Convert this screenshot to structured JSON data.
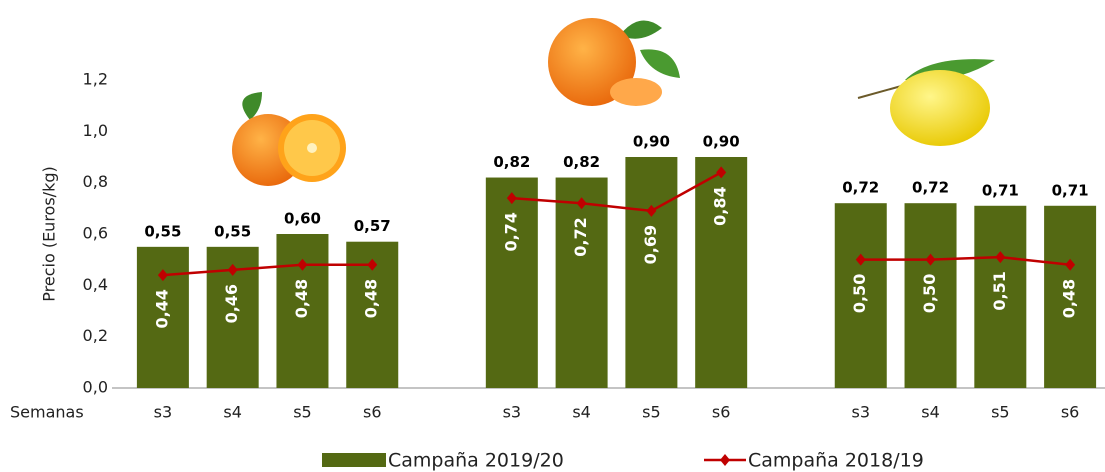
{
  "chart_data": {
    "type": "bar_line",
    "y_label": "Precio (Euros/kg)",
    "x_label": "Semanas",
    "categories": [
      "s3",
      "s4",
      "s5",
      "s6",
      null,
      "s3",
      "s4",
      "s5",
      "s6",
      null,
      "s3",
      "s4",
      "s5",
      "s6"
    ],
    "ylim": [
      0,
      1.2
    ],
    "yticks": [
      {
        "value": 0,
        "label": "0,0"
      },
      {
        "value": 0.2,
        "label": "0,2"
      },
      {
        "value": 0.4,
        "label": "0,4"
      },
      {
        "value": 0.6,
        "label": "0,6"
      },
      {
        "value": 0.8,
        "label": "0,8"
      },
      {
        "value": 1.0,
        "label": "1,0"
      },
      {
        "value": 1.2,
        "label": "1,2"
      }
    ],
    "series": [
      {
        "name": "Campaña 2019/20",
        "type": "bar",
        "color": "#546913",
        "values": [
          0.55,
          0.55,
          0.6,
          0.57,
          null,
          0.82,
          0.82,
          0.9,
          0.9,
          null,
          0.72,
          0.72,
          0.71,
          0.71
        ],
        "value_labels": [
          "0,55",
          "0,55",
          "0,60",
          "0,57",
          null,
          "0,82",
          "0,82",
          "0,90",
          "0,90",
          null,
          "0,72",
          "0,72",
          "0,71",
          "0,71"
        ]
      },
      {
        "name": "Campaña 2018/19",
        "type": "line",
        "color": "#c00000",
        "values": [
          0.44,
          0.46,
          0.48,
          0.48,
          null,
          0.74,
          0.72,
          0.69,
          0.84,
          null,
          0.5,
          0.5,
          0.51,
          0.48
        ],
        "value_labels": [
          "0,44",
          "0,46",
          "0,48",
          "0,48",
          null,
          "0,74",
          "0,72",
          "0,69",
          "0,84",
          null,
          "0,50",
          "0,50",
          "0,51",
          "0,48"
        ]
      }
    ]
  }
}
